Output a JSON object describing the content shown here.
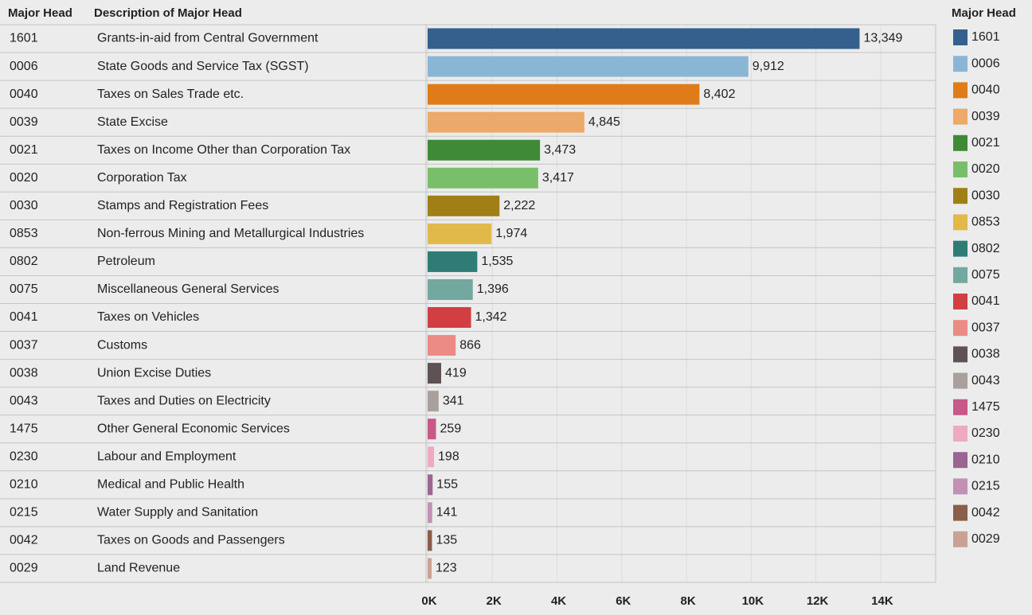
{
  "chart_data": {
    "type": "bar",
    "orientation": "horizontal",
    "column_headers": [
      "Major Head",
      "Description  of Major Head"
    ],
    "legend_title": "Major Head",
    "categories": [
      "1601",
      "0006",
      "0040",
      "0039",
      "0021",
      "0020",
      "0030",
      "0853",
      "0802",
      "0075",
      "0041",
      "0037",
      "0038",
      "0043",
      "1475",
      "0230",
      "0210",
      "0215",
      "0042",
      "0029"
    ],
    "descriptions": [
      "Grants-in-aid from Central Government",
      "State Goods and Service Tax (SGST)",
      "Taxes on Sales Trade etc.",
      "State Excise",
      "Taxes on Income Other than Corporation Tax",
      "Corporation Tax",
      "Stamps and Registration Fees",
      "Non-ferrous Mining and Metallurgical Industries",
      "Petroleum",
      "Miscellaneous General Services",
      "Taxes on Vehicles",
      "Customs",
      "Union Excise Duties",
      "Taxes and Duties on Electricity",
      "Other General Economic Services",
      "Labour and Employment",
      "Medical and Public Health",
      "Water Supply and Sanitation",
      "Taxes on Goods and Passengers",
      "Land Revenue"
    ],
    "values": [
      13349,
      9912,
      8402,
      4845,
      3473,
      3417,
      2222,
      1974,
      1535,
      1396,
      1342,
      866,
      419,
      341,
      259,
      198,
      155,
      141,
      135,
      123
    ],
    "value_labels": [
      "13,349",
      "9,912",
      "8,402",
      "4,845",
      "3,473",
      "3,417",
      "2,222",
      "1,974",
      "1,535",
      "1,396",
      "1,342",
      "866",
      "419",
      "341",
      "259",
      "198",
      "155",
      "141",
      "135",
      "123"
    ],
    "colors": [
      "#355f8d",
      "#8ab6d6",
      "#e07b1a",
      "#eba96a",
      "#3f8a36",
      "#79bf6a",
      "#a07f17",
      "#e0b94a",
      "#2f7c77",
      "#72a8a0",
      "#d13f42",
      "#ec8a85",
      "#5e5254",
      "#a9a09d",
      "#c75887",
      "#eeaac1",
      "#9a6592",
      "#c390b5",
      "#8b5e49",
      "#c9a295"
    ],
    "xlim": [
      0,
      15700
    ],
    "xticks": [
      {
        "value": 0,
        "label": "0K"
      },
      {
        "value": 2000,
        "label": "2K"
      },
      {
        "value": 4000,
        "label": "4K"
      },
      {
        "value": 6000,
        "label": "6K"
      },
      {
        "value": 8000,
        "label": "8K"
      },
      {
        "value": 10000,
        "label": "10K"
      },
      {
        "value": 12000,
        "label": "12K"
      },
      {
        "value": 14000,
        "label": "14K"
      }
    ],
    "grid": true
  }
}
